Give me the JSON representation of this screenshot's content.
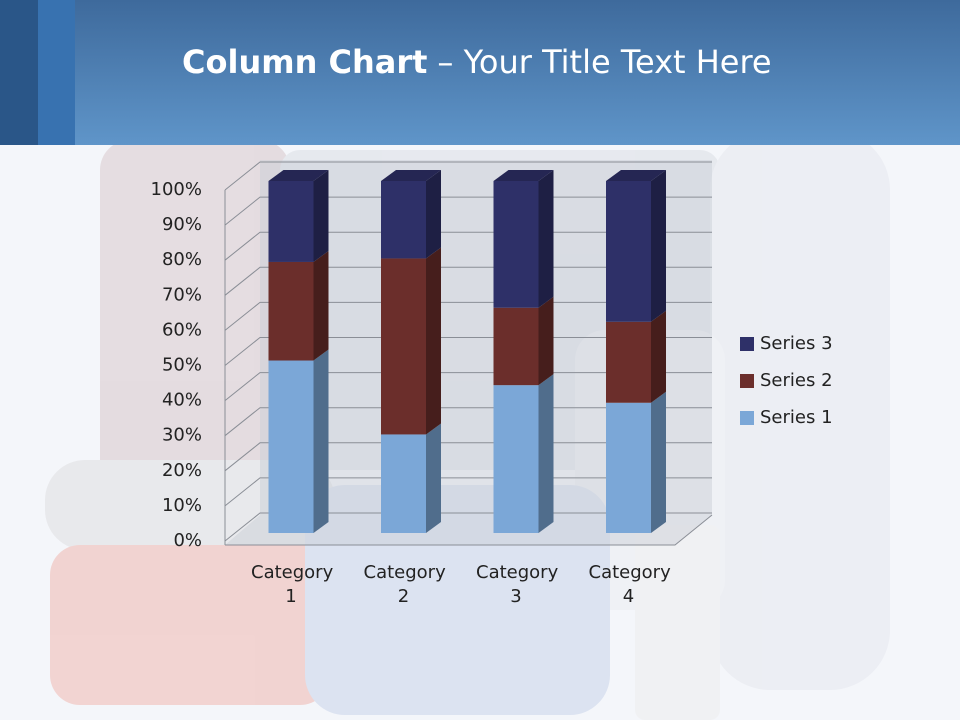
{
  "chart_data": {
    "type": "stacked_column_3d_percent",
    "title": {
      "bold": "Column Chart",
      "rest": "– Your Title Text Here"
    },
    "categories": [
      "Category 1",
      "Category 2",
      "Category 3",
      "Category 4"
    ],
    "series": [
      {
        "name": "Series 1",
        "color": "#7ba7d7",
        "values": [
          49,
          28,
          42,
          37
        ]
      },
      {
        "name": "Series 2",
        "color": "#6b2e2b",
        "values": [
          28,
          50,
          22,
          23
        ]
      },
      {
        "name": "Series 3",
        "color": "#2e3068",
        "values": [
          23,
          22,
          36,
          40
        ]
      }
    ],
    "ylim": [
      0,
      100
    ],
    "yticks": [
      {
        "value": 0,
        "label": "0%"
      },
      {
        "value": 10,
        "label": "10%"
      },
      {
        "value": 20,
        "label": "20%"
      },
      {
        "value": 30,
        "label": "30%"
      },
      {
        "value": 40,
        "label": "40%"
      },
      {
        "value": 50,
        "label": "50%"
      },
      {
        "value": 60,
        "label": "60%"
      },
      {
        "value": 70,
        "label": "70%"
      },
      {
        "value": 80,
        "label": "80%"
      },
      {
        "value": 90,
        "label": "90%"
      },
      {
        "value": 100,
        "label": "100%"
      }
    ],
    "grid": true,
    "legend": "right"
  }
}
